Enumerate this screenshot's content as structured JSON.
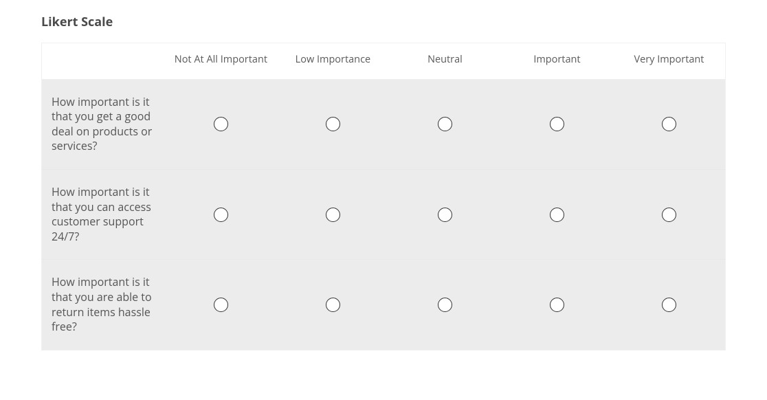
{
  "likert": {
    "title": "Likert Scale",
    "options": [
      "Not At All Important",
      "Low Importance",
      "Neutral",
      "Important",
      "Very Important"
    ],
    "questions": [
      "How important is it that you get a good deal on products or services?",
      "How important is it that you can access customer support 24/7?",
      "How important is it that you are able to return items hassle free?"
    ],
    "colors": {
      "row_bg": "#ececec",
      "text_primary": "#4a4a4a",
      "text_body": "#555555",
      "radio_border": "#333333"
    }
  }
}
